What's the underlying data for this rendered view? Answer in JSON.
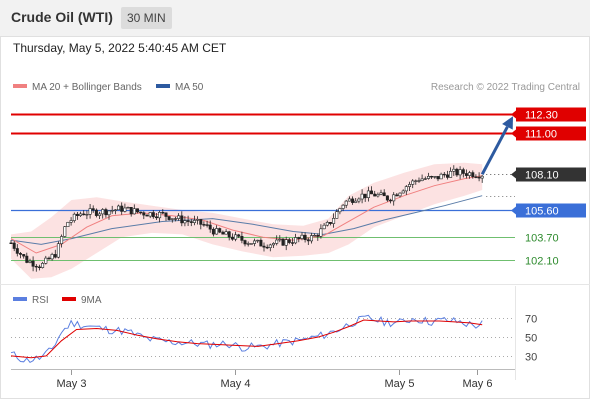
{
  "header": {
    "title": "Crude Oil (WTI)",
    "timeframe": "30 MIN"
  },
  "datetime": "Thursday, May 5, 2022 5:40:45 AM CET",
  "legend": {
    "ma20": "MA 20 + Bollinger Bands",
    "ma50": "MA 50",
    "source": "Research © 2022 Trading Central"
  },
  "rsi_legend": {
    "rsi": "RSI",
    "ma9": "9MA"
  },
  "colors": {
    "red": "#e00000",
    "blue": "#3a6fd8",
    "green": "#2e9e2e",
    "bband": "#fbdddd",
    "ma20": "#f08080",
    "ma50": "#5a7ca8",
    "price_box": "#333333",
    "arrow": "#2d5aa0",
    "candle": "#222222",
    "rsi": "#5b7fe0",
    "rsi_ma": "#e00000"
  },
  "chart_data": {
    "type": "candlestick",
    "price_axis": {
      "min": 100.5,
      "max": 113.5
    },
    "levels": [
      {
        "name": "resistance-2",
        "value": 112.3,
        "label": "112.30",
        "color": "#e00000",
        "style": "resistance"
      },
      {
        "name": "resistance-1",
        "value": 111.0,
        "label": "111.00",
        "color": "#e00000",
        "style": "resistance"
      },
      {
        "name": "last-price",
        "value": 108.1,
        "label": "108.10",
        "color": "#333333",
        "style": "last"
      },
      {
        "name": "pivot",
        "value": 105.6,
        "label": "105.60",
        "color": "#3a6fd8",
        "style": "pivot"
      },
      {
        "name": "support-1",
        "value": 103.7,
        "label": "103.70",
        "color": "#2e9e2e",
        "style": "support"
      },
      {
        "name": "support-2",
        "value": 102.1,
        "label": "102.10",
        "color": "#2e9e2e",
        "style": "support"
      }
    ],
    "x_ticks": [
      {
        "label": "May 3",
        "t": 0.12
      },
      {
        "label": "May 4",
        "t": 0.445
      },
      {
        "label": "May 5",
        "t": 0.77
      },
      {
        "label": "May 6",
        "t": 0.925
      }
    ],
    "price_path": [
      [
        0,
        103.3
      ],
      [
        0.03,
        102.1
      ],
      [
        0.06,
        101.7
      ],
      [
        0.09,
        102.6
      ],
      [
        0.11,
        104.7
      ],
      [
        0.14,
        105.4
      ],
      [
        0.18,
        105.5
      ],
      [
        0.22,
        105.7
      ],
      [
        0.26,
        105.4
      ],
      [
        0.3,
        105.3
      ],
      [
        0.34,
        104.9
      ],
      [
        0.38,
        104.6
      ],
      [
        0.41,
        104.0
      ],
      [
        0.44,
        103.7
      ],
      [
        0.47,
        103.4
      ],
      [
        0.5,
        103.2
      ],
      [
        0.53,
        103.3
      ],
      [
        0.56,
        103.5
      ],
      [
        0.6,
        103.7
      ],
      [
        0.63,
        104.6
      ],
      [
        0.66,
        106.1
      ],
      [
        0.69,
        106.6
      ],
      [
        0.72,
        106.7
      ],
      [
        0.75,
        106.4
      ],
      [
        0.78,
        107.2
      ],
      [
        0.81,
        107.8
      ],
      [
        0.84,
        107.8
      ],
      [
        0.87,
        108.2
      ],
      [
        0.9,
        108.2
      ],
      [
        0.93,
        108.1
      ]
    ],
    "ma20": [
      [
        0,
        103.6
      ],
      [
        0.05,
        102.6
      ],
      [
        0.1,
        103.2
      ],
      [
        0.15,
        104.4
      ],
      [
        0.2,
        105.2
      ],
      [
        0.26,
        105.4
      ],
      [
        0.32,
        105.2
      ],
      [
        0.38,
        104.9
      ],
      [
        0.44,
        104.2
      ],
      [
        0.5,
        103.7
      ],
      [
        0.56,
        103.5
      ],
      [
        0.62,
        103.8
      ],
      [
        0.66,
        104.6
      ],
      [
        0.72,
        105.8
      ],
      [
        0.78,
        106.6
      ],
      [
        0.84,
        107.3
      ],
      [
        0.9,
        107.8
      ],
      [
        0.935,
        108.0
      ]
    ],
    "ma50": [
      [
        0,
        103.5
      ],
      [
        0.06,
        103.2
      ],
      [
        0.12,
        103.6
      ],
      [
        0.2,
        104.3
      ],
      [
        0.3,
        104.8
      ],
      [
        0.4,
        105.0
      ],
      [
        0.48,
        104.6
      ],
      [
        0.56,
        104.1
      ],
      [
        0.62,
        103.9
      ],
      [
        0.68,
        104.3
      ],
      [
        0.74,
        104.9
      ],
      [
        0.8,
        105.4
      ],
      [
        0.86,
        105.9
      ],
      [
        0.935,
        106.6
      ]
    ],
    "bollinger_upper": [
      [
        0,
        103.9
      ],
      [
        0.04,
        104.1
      ],
      [
        0.08,
        105.1
      ],
      [
        0.12,
        106.3
      ],
      [
        0.17,
        106.5
      ],
      [
        0.22,
        106.2
      ],
      [
        0.28,
        105.9
      ],
      [
        0.34,
        105.6
      ],
      [
        0.4,
        105.4
      ],
      [
        0.46,
        105.0
      ],
      [
        0.52,
        104.6
      ],
      [
        0.58,
        104.5
      ],
      [
        0.63,
        105.0
      ],
      [
        0.67,
        106.6
      ],
      [
        0.72,
        107.5
      ],
      [
        0.78,
        108.2
      ],
      [
        0.84,
        108.8
      ],
      [
        0.9,
        108.9
      ],
      [
        0.935,
        108.8
      ]
    ],
    "bollinger_lower": [
      [
        0,
        102.2
      ],
      [
        0.04,
        100.8
      ],
      [
        0.08,
        100.9
      ],
      [
        0.12,
        101.5
      ],
      [
        0.17,
        102.6
      ],
      [
        0.22,
        103.7
      ],
      [
        0.28,
        104.0
      ],
      [
        0.34,
        103.9
      ],
      [
        0.4,
        103.2
      ],
      [
        0.46,
        102.7
      ],
      [
        0.52,
        102.3
      ],
      [
        0.58,
        102.4
      ],
      [
        0.63,
        102.6
      ],
      [
        0.67,
        103.2
      ],
      [
        0.72,
        104.4
      ],
      [
        0.78,
        105.2
      ],
      [
        0.84,
        106.0
      ],
      [
        0.9,
        106.6
      ],
      [
        0.935,
        107.0
      ]
    ],
    "forecast_arrow": {
      "from": [
        0.935,
        108.1
      ],
      "to": [
        1.0,
        112.3
      ]
    },
    "rsi": {
      "axis": {
        "min": 15,
        "max": 85
      },
      "ticks": [
        {
          "value": 70,
          "label": "70"
        },
        {
          "value": 50,
          "label": "50"
        },
        {
          "value": 30,
          "label": "30"
        }
      ],
      "rsi_path": [
        [
          0,
          32
        ],
        [
          0.03,
          25
        ],
        [
          0.06,
          28
        ],
        [
          0.08,
          36
        ],
        [
          0.1,
          55
        ],
        [
          0.12,
          65
        ],
        [
          0.15,
          62
        ],
        [
          0.19,
          58
        ],
        [
          0.23,
          56
        ],
        [
          0.27,
          48
        ],
        [
          0.31,
          45
        ],
        [
          0.35,
          44
        ],
        [
          0.39,
          42
        ],
        [
          0.43,
          43
        ],
        [
          0.46,
          39
        ],
        [
          0.5,
          40
        ],
        [
          0.54,
          44
        ],
        [
          0.58,
          47
        ],
        [
          0.62,
          52
        ],
        [
          0.65,
          58
        ],
        [
          0.68,
          66
        ],
        [
          0.71,
          70
        ],
        [
          0.74,
          66
        ],
        [
          0.77,
          65
        ],
        [
          0.8,
          70
        ],
        [
          0.83,
          66
        ],
        [
          0.86,
          68
        ],
        [
          0.89,
          66
        ],
        [
          0.92,
          62
        ],
        [
          0.935,
          64
        ]
      ],
      "ma_path": [
        [
          0,
          30
        ],
        [
          0.04,
          28
        ],
        [
          0.07,
          30
        ],
        [
          0.1,
          46
        ],
        [
          0.13,
          58
        ],
        [
          0.17,
          59
        ],
        [
          0.21,
          57
        ],
        [
          0.25,
          52
        ],
        [
          0.29,
          48
        ],
        [
          0.33,
          45
        ],
        [
          0.37,
          43
        ],
        [
          0.41,
          42
        ],
        [
          0.45,
          41
        ],
        [
          0.49,
          40
        ],
        [
          0.53,
          43
        ],
        [
          0.57,
          46
        ],
        [
          0.61,
          50
        ],
        [
          0.64,
          55
        ],
        [
          0.67,
          61
        ],
        [
          0.7,
          68
        ],
        [
          0.73,
          67
        ],
        [
          0.76,
          66
        ],
        [
          0.79,
          67
        ],
        [
          0.82,
          67
        ],
        [
          0.85,
          67
        ],
        [
          0.88,
          66
        ],
        [
          0.91,
          65
        ],
        [
          0.935,
          63
        ]
      ]
    }
  }
}
